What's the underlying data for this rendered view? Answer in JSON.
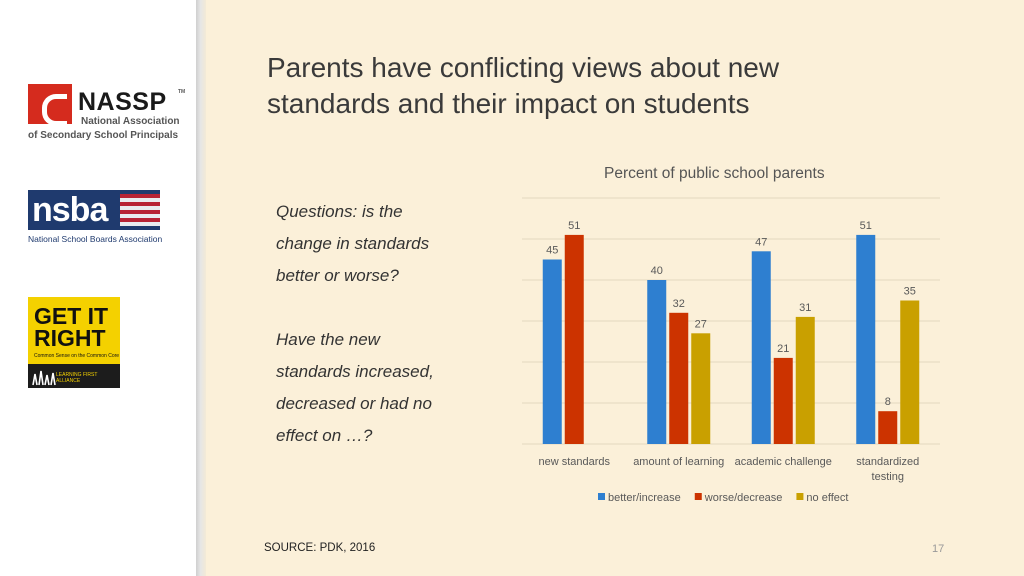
{
  "slide": {
    "title": "Parents have conflicting views about new standards and their impact on students",
    "questions": [
      "Questions: is the",
      "change in standards",
      "better or worse?",
      "",
      "Have the new",
      "standards increased,",
      "decreased or had no",
      "effect on …?"
    ],
    "source": "SOURCE: PDK, 2016",
    "page_number": "17"
  },
  "logos": {
    "nassp": {
      "name": "NASSP",
      "tm": "TM",
      "line1": "National Association",
      "line2": "of Secondary School Principals"
    },
    "nsba": {
      "name": "nsba",
      "subtitle": "National School Boards Association"
    },
    "get_it_right": {
      "name_line1": "GET IT",
      "name_line2": "RIGHT",
      "tagline": "Common Sense on the Common Core",
      "footer": "LEARNING FIRST ALLIANCE"
    }
  },
  "chart_data": {
    "type": "bar",
    "title": "Percent of public school parents",
    "categories": [
      "new standards",
      "amount of learning",
      "academic challenge",
      "standardized testing"
    ],
    "series": [
      {
        "name": "better/increase",
        "color": "#2e7fd0",
        "values": [
          45,
          40,
          47,
          51
        ]
      },
      {
        "name": "worse/decrease",
        "color": "#cc3300",
        "values": [
          51,
          32,
          21,
          8
        ]
      },
      {
        "name": "no effect",
        "color": "#c9a000",
        "values": [
          null,
          27,
          31,
          35
        ]
      }
    ],
    "ylim": [
      0,
      60
    ],
    "grid": true,
    "legend": "bottom",
    "data_labels": true
  }
}
